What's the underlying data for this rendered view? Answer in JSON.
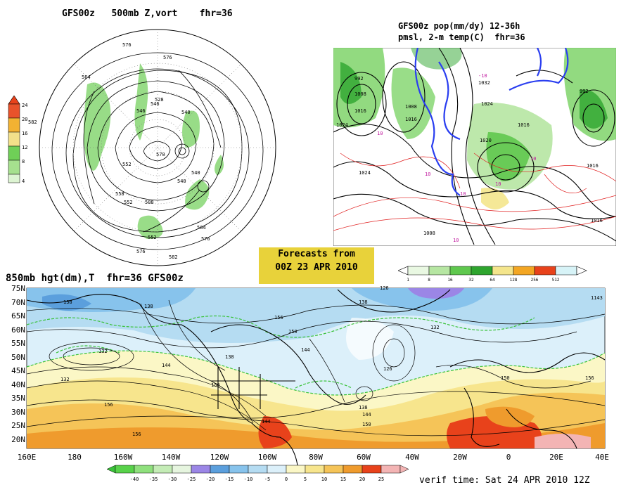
{
  "panel_top_left": {
    "title": "GFS00z   500mb Z,vort    fhr=36",
    "colorbar": {
      "labels": [
        "24",
        "20",
        "16",
        "12",
        "8",
        "4"
      ],
      "colors": [
        "#e8522b",
        "#f2b232",
        "#f2e08a",
        "#6fcf57",
        "#a6e08e",
        "#ddf4d2"
      ]
    },
    "contour_labels": [
      "576",
      "576",
      "564",
      "546",
      "528",
      "540",
      "552",
      "558",
      "570",
      "546",
      "540",
      "582",
      "588",
      "576",
      "564",
      "552",
      "576",
      "540",
      "552",
      "582"
    ]
  },
  "panel_top_right": {
    "title_line1": "GFS00z pop(mm/dy) 12-36h",
    "title_line2": "pmsl, 2-m temp(C)  fhr=36",
    "pressure_labels": [
      "992",
      "1008",
      "1016",
      "1008",
      "1016",
      "1024",
      "1032",
      "1024",
      "1016",
      "1020",
      "1016",
      "1024",
      "1008",
      "1016",
      "992"
    ],
    "temp_labels": [
      "-10",
      "10",
      "10",
      "10",
      "10",
      "10",
      "10"
    ],
    "colorbar": {
      "labels": [
        "1",
        "8",
        "16",
        "32",
        "64",
        "128",
        "256",
        "512"
      ],
      "colors": [
        "#e9f8e2",
        "#b6e6a2",
        "#5fc84e",
        "#2ea52e",
        "#f4e58c",
        "#f3a623",
        "#e8421b",
        "#d7f3f7"
      ]
    }
  },
  "forecast_box": {
    "line1": "Forecasts from",
    "line2": "00Z 23 APR 2010"
  },
  "panel_bottom": {
    "title": "850mb hgt(dm),T  fhr=36 GFS00z",
    "lat_labels": [
      "75N",
      "70N",
      "65N",
      "60N",
      "55N",
      "50N",
      "45N",
      "40N",
      "35N",
      "30N",
      "25N",
      "20N"
    ],
    "lon_labels": [
      "160E",
      "180",
      "160W",
      "140W",
      "120W",
      "100W",
      "80W",
      "60W",
      "40W",
      "20W",
      "0",
      "20E",
      "40E"
    ],
    "contour_labels": [
      "138",
      "138",
      "156",
      "150",
      "144",
      "138",
      "132",
      "126",
      "132",
      "138",
      "144",
      "150",
      "156",
      "138",
      "126",
      "144",
      "150",
      "156",
      "132",
      "150",
      "144",
      "156",
      "1143"
    ],
    "colorbar": {
      "labels": [
        "-40",
        "-35",
        "-30",
        "-25",
        "-20",
        "-15",
        "-10",
        "-5",
        "0",
        "5",
        "10",
        "15",
        "20",
        "25"
      ],
      "colors": [
        "#58d24a",
        "#8fe07d",
        "#c4ecb6",
        "#e6f5df",
        "#9b86e6",
        "#5b9fdd",
        "#87c3ec",
        "#b5dcf2",
        "#dcf0fa",
        "#fbf7c6",
        "#f7e58d",
        "#f5c458",
        "#ef9b2d",
        "#e8421b",
        "#f3b4b4"
      ]
    },
    "verif_time": "verif time: Sat 24 APR 2010 12Z"
  }
}
